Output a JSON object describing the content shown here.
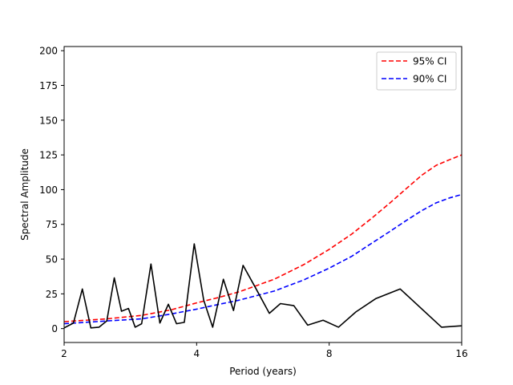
{
  "chart_data": {
    "type": "line",
    "title": "",
    "xlabel": "Period (years)",
    "ylabel": "Spectral Amplitude",
    "x_scale": "log2",
    "xlim": [
      2,
      16
    ],
    "ylim": [
      -10,
      203
    ],
    "x_ticks": [
      {
        "value": 2,
        "label": "2"
      },
      {
        "value": 4,
        "label": "4"
      },
      {
        "value": 8,
        "label": "8"
      },
      {
        "value": 16,
        "label": "16"
      }
    ],
    "y_ticks": [
      {
        "value": 0,
        "label": "0"
      },
      {
        "value": 25,
        "label": "25"
      },
      {
        "value": 50,
        "label": "50"
      },
      {
        "value": 75,
        "label": "75"
      },
      {
        "value": 100,
        "label": "100"
      },
      {
        "value": 125,
        "label": "125"
      },
      {
        "value": 150,
        "label": "150"
      },
      {
        "value": 175,
        "label": "175"
      },
      {
        "value": 200,
        "label": "200"
      }
    ],
    "grid": false,
    "legend_position": "top-right",
    "series": [
      {
        "name": "",
        "color": "#000000",
        "style": "solid",
        "points": [
          [
            2.0,
            0.5
          ],
          [
            2.1,
            4.0
          ],
          [
            2.2,
            28.5
          ],
          [
            2.3,
            0.5
          ],
          [
            2.4,
            1.0
          ],
          [
            2.5,
            5.5
          ],
          [
            2.6,
            36.5
          ],
          [
            2.7,
            12.5
          ],
          [
            2.8,
            14.5
          ],
          [
            2.9,
            1.0
          ],
          [
            3.0,
            3.5
          ],
          [
            3.15,
            46.5
          ],
          [
            3.3,
            4.0
          ],
          [
            3.45,
            17.5
          ],
          [
            3.6,
            3.5
          ],
          [
            3.75,
            4.5
          ],
          [
            3.95,
            61.0
          ],
          [
            4.15,
            20.5
          ],
          [
            4.35,
            1.0
          ],
          [
            4.6,
            35.5
          ],
          [
            4.85,
            13.0
          ],
          [
            5.1,
            45.5
          ],
          [
            5.45,
            29.0
          ],
          [
            5.85,
            11.0
          ],
          [
            6.2,
            18.0
          ],
          [
            6.65,
            16.5
          ],
          [
            7.15,
            2.5
          ],
          [
            7.75,
            6.0
          ],
          [
            8.4,
            1.0
          ],
          [
            9.2,
            12.0
          ],
          [
            10.2,
            21.5
          ],
          [
            11.6,
            28.5
          ],
          [
            14.4,
            1.0
          ],
          [
            16.0,
            2.0
          ]
        ]
      },
      {
        "name": "95% CI",
        "color": "#ff0000",
        "style": "dashed",
        "points": [
          [
            2.0,
            5.0
          ],
          [
            2.5,
            7.0
          ],
          [
            3.0,
            9.5
          ],
          [
            3.5,
            13.5
          ],
          [
            4.0,
            18.5
          ],
          [
            4.5,
            22.5
          ],
          [
            5.0,
            26.5
          ],
          [
            6.0,
            35.5
          ],
          [
            7.0,
            46.0
          ],
          [
            8.0,
            57.0
          ],
          [
            9.0,
            68.0
          ],
          [
            10.0,
            79.5
          ],
          [
            11.0,
            90.5
          ],
          [
            12.0,
            101.0
          ],
          [
            13.0,
            110.5
          ],
          [
            14.0,
            117.5
          ],
          [
            15.0,
            121.5
          ],
          [
            16.0,
            125.0
          ]
        ]
      },
      {
        "name": "90% CI",
        "color": "#0000ff",
        "style": "dashed",
        "points": [
          [
            2.0,
            3.5
          ],
          [
            2.5,
            5.5
          ],
          [
            3.0,
            7.0
          ],
          [
            3.5,
            10.5
          ],
          [
            4.0,
            14.0
          ],
          [
            4.5,
            17.5
          ],
          [
            5.0,
            20.5
          ],
          [
            6.0,
            27.0
          ],
          [
            7.0,
            35.0
          ],
          [
            8.0,
            43.5
          ],
          [
            9.0,
            52.0
          ],
          [
            10.0,
            61.5
          ],
          [
            11.0,
            70.0
          ],
          [
            12.0,
            78.0
          ],
          [
            13.0,
            85.0
          ],
          [
            14.0,
            90.5
          ],
          [
            15.0,
            94.0
          ],
          [
            16.0,
            96.5
          ]
        ]
      }
    ]
  }
}
